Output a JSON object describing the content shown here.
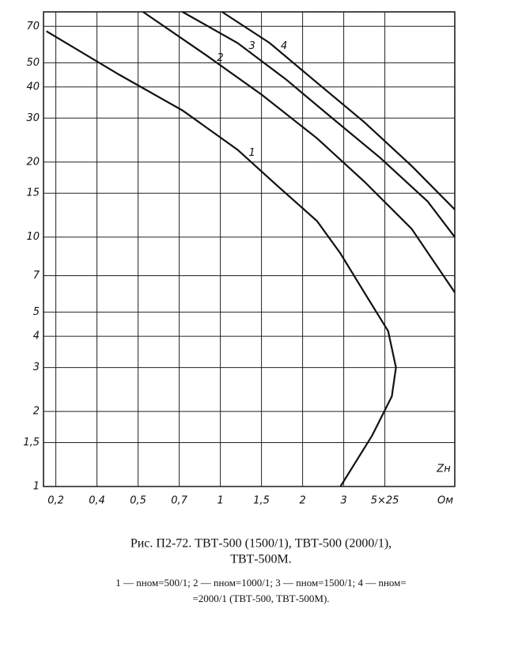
{
  "chart_data": {
    "type": "line",
    "xlabel": "Zн",
    "x_unit": "Ом",
    "xlim": [
      0.14,
      8.4
    ],
    "xticks": [
      {
        "value": 0.2,
        "label": "0,2"
      },
      {
        "value": 0.4,
        "label": "0,4"
      },
      {
        "value": 0.5,
        "label": "0,5"
      },
      {
        "value": 0.7,
        "label": "0,7"
      },
      1,
      {
        "value": 1.5,
        "label": "1,5"
      },
      2,
      3,
      {
        "value": 5,
        "label": "5×25"
      }
    ],
    "ylim": [
      1,
      80
    ],
    "ylog": true,
    "yticks": [
      1,
      {
        "value": 1.5,
        "label": "1,5"
      },
      2,
      3,
      4,
      5,
      7,
      10,
      15,
      20,
      30,
      40,
      50,
      70
    ],
    "grid": true,
    "series": [
      {
        "name": "1",
        "color": "#111111",
        "x": [
          0.154,
          0.454,
          0.724,
          1.21,
          1.69,
          2.35,
          2.92,
          4.0,
          5.16,
          5.54,
          5.34,
          4.38,
          2.92
        ],
        "values": [
          66.9,
          44.8,
          32.2,
          22.4,
          16.1,
          11.6,
          8.6,
          6.0,
          4.2,
          3.0,
          2.3,
          1.6,
          1
        ]
      },
      {
        "name": "2",
        "color": "#111111",
        "x": [
          0.524,
          0.895,
          1.5,
          2.35,
          4.0,
          6.3,
          8.4
        ],
        "values": [
          80,
          53.7,
          37.3,
          24.9,
          16.7,
          10.8,
          6.0
        ]
      },
      {
        "name": "3",
        "color": "#111111",
        "x": [
          0.724,
          1.21,
          1.79,
          2.73,
          4.77,
          7.08,
          8.4
        ],
        "values": [
          80,
          60,
          43.1,
          29.9,
          20.8,
          13.9,
          10
        ]
      },
      {
        "name": "4",
        "color": "#111111",
        "x": [
          1.02,
          1.6,
          2.35,
          4.0,
          6.3,
          8.4
        ],
        "values": [
          80,
          60,
          41.6,
          28.9,
          19.3,
          12.9
        ]
      }
    ],
    "caption": [
      "Рис. П2-72. ТВТ-500 (1500/1), ТВТ-500 (2000/1),",
      "ТВТ-500М."
    ],
    "notes": [
      "1 — nном=500/1;  2 — nном=1000/1;  3 — nном=1500/1;  4 — nном=",
      "=2000/1 (ТВТ-500, ТВТ-500М)."
    ]
  }
}
